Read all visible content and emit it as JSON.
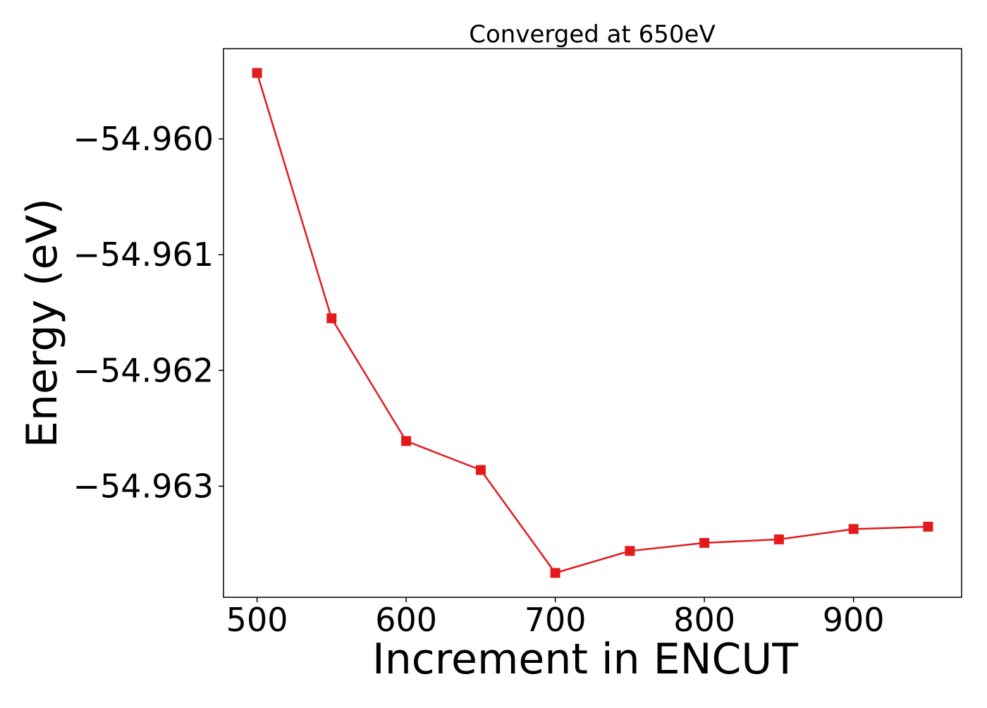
{
  "chart_data": {
    "type": "line",
    "title": "Converged at 650eV",
    "xlabel": "Increment in ENCUT",
    "ylabel": "Energy (eV)",
    "x": [
      500,
      550,
      600,
      650,
      700,
      750,
      800,
      850,
      900,
      950
    ],
    "series": [
      {
        "values": [
          -54.95943,
          -54.96155,
          -54.96261,
          -54.96286,
          -54.96375,
          -54.96356,
          -54.96349,
          -54.96346,
          -54.96337,
          -54.96335
        ],
        "color": "#e31a1c",
        "marker": "square"
      }
    ],
    "xticks": [
      500,
      600,
      700,
      800,
      900
    ],
    "yticks": [
      -54.96,
      -54.961,
      -54.962,
      -54.963
    ],
    "ytick_labels": [
      "−54.960",
      "−54.961",
      "−54.962",
      "−54.963"
    ],
    "xlim": [
      477.5,
      972.5
    ],
    "ylim": [
      -54.96396,
      -54.95922
    ],
    "grid": false,
    "legend": "none"
  }
}
